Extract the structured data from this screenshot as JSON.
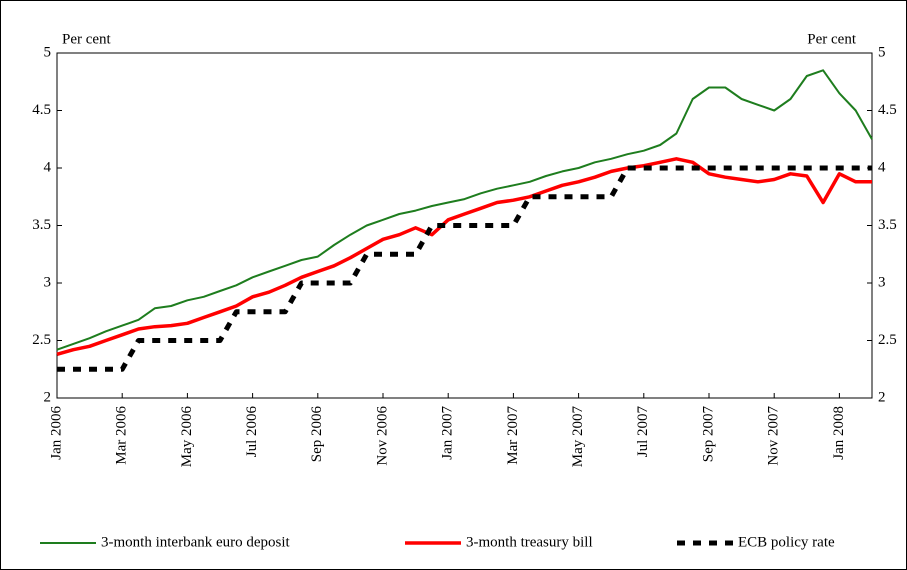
{
  "chart_data": {
    "type": "line",
    "y_label": "Per cent",
    "y2_label": "Per cent",
    "categories": [
      "Jan 2006",
      null,
      null,
      null,
      "Mar 2006",
      null,
      null,
      null,
      "May 2006",
      null,
      null,
      null,
      "Jul 2006",
      null,
      null,
      null,
      "Sep 2006",
      null,
      null,
      null,
      "Nov 2006",
      null,
      null,
      null,
      "Jan 2007",
      null,
      null,
      null,
      "Mar 2007",
      null,
      null,
      null,
      "May 2007",
      null,
      null,
      null,
      "Jul 2007",
      null,
      null,
      null,
      "Sep 2007",
      null,
      null,
      null,
      "Nov 2007",
      null,
      null,
      null,
      "Jan 2008",
      null,
      null
    ],
    "series": [
      {
        "name": "3-month interbank euro deposit",
        "color": "#1e7d1e",
        "dashed": false,
        "values": [
          2.42,
          2.47,
          2.52,
          2.58,
          2.63,
          2.68,
          2.78,
          2.8,
          2.85,
          2.88,
          2.93,
          2.98,
          3.05,
          3.1,
          3.15,
          3.2,
          3.23,
          3.33,
          3.42,
          3.5,
          3.55,
          3.6,
          3.63,
          3.67,
          3.7,
          3.73,
          3.78,
          3.82,
          3.85,
          3.88,
          3.93,
          3.97,
          4.0,
          4.05,
          4.08,
          4.12,
          4.15,
          4.2,
          4.3,
          4.6,
          4.7,
          4.7,
          4.6,
          4.55,
          4.5,
          4.6,
          4.8,
          4.85,
          4.65,
          4.5,
          4.25
        ]
      },
      {
        "name": "3-month treasury bill",
        "color": "#ff0000",
        "dashed": false,
        "values": [
          2.38,
          2.42,
          2.45,
          2.5,
          2.55,
          2.6,
          2.62,
          2.63,
          2.65,
          2.7,
          2.75,
          2.8,
          2.88,
          2.92,
          2.98,
          3.05,
          3.1,
          3.15,
          3.22,
          3.3,
          3.38,
          3.42,
          3.48,
          3.42,
          3.55,
          3.6,
          3.65,
          3.7,
          3.72,
          3.75,
          3.8,
          3.85,
          3.88,
          3.92,
          3.97,
          4.0,
          4.02,
          4.05,
          4.08,
          4.05,
          3.95,
          3.92,
          3.9,
          3.88,
          3.9,
          3.95,
          3.93,
          3.7,
          3.95,
          3.88,
          3.88
        ]
      },
      {
        "name": "ECB policy rate",
        "color": "#000000",
        "dashed": true,
        "values": [
          2.25,
          2.25,
          2.25,
          2.25,
          2.25,
          2.5,
          2.5,
          2.5,
          2.5,
          2.5,
          2.5,
          2.75,
          2.75,
          2.75,
          2.75,
          3.0,
          3.0,
          3.0,
          3.0,
          3.25,
          3.25,
          3.25,
          3.25,
          3.5,
          3.5,
          3.5,
          3.5,
          3.5,
          3.5,
          3.75,
          3.75,
          3.75,
          3.75,
          3.75,
          3.75,
          4.0,
          4.0,
          4.0,
          4.0,
          4.0,
          4.0,
          4.0,
          4.0,
          4.0,
          4.0,
          4.0,
          4.0,
          4.0,
          4.0,
          4.0,
          4.0
        ]
      }
    ],
    "ylim": [
      2,
      5
    ],
    "yticks": [
      2,
      2.5,
      3,
      3.5,
      4,
      4.5,
      5
    ],
    "y2lim": [
      2,
      5
    ],
    "y2ticks": [
      2,
      2.5,
      3,
      3.5,
      4,
      4.5,
      5
    ],
    "grid": false,
    "legend": "bottom"
  }
}
